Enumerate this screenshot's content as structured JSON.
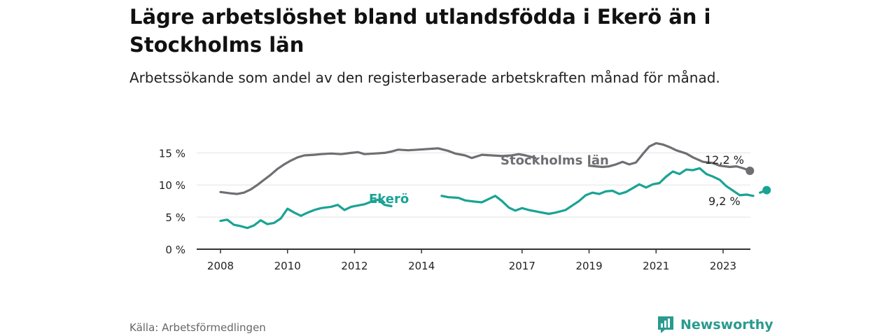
{
  "title": "Lägre arbetslöshet bland utlandsfödda i Ekerö än i Stockholms län",
  "subtitle": "Arbetssökande som andel av den registerbaserade arbetskraften månad för månad.",
  "source": "Källa: Arbetsförmedlingen",
  "brand": "Newsworthy",
  "colors": {
    "stockholm": "#6f6e73",
    "ekero": "#1aa394",
    "grid": "#e3e3e3",
    "axis": "#333333",
    "brand": "#2a9a8f"
  },
  "chart_data": {
    "type": "line",
    "title": "Lägre arbetslöshet bland utlandsfödda i Ekerö än i Stockholms län",
    "ylabel": "",
    "xlabel": "",
    "ylim": [
      0,
      17
    ],
    "xlim": [
      2007.7,
      2023.9
    ],
    "yticks": [
      0,
      5,
      10,
      15
    ],
    "ytick_labels": [
      "0 %",
      "5 %",
      "10 %",
      "15 %"
    ],
    "xticks": [
      2008,
      2010,
      2012,
      2014,
      2017,
      2019,
      2021,
      2023
    ],
    "xtick_labels": [
      "2008",
      "2010",
      "2012",
      "2014",
      "2017",
      "2019",
      "2021",
      "2023"
    ],
    "series": [
      {
        "name": "Stockholms län",
        "color": "#6f6e73",
        "end_label": "12,2 %",
        "segments": [
          [
            [
              2008.0,
              8.9
            ],
            [
              2008.3,
              8.7
            ],
            [
              2008.5,
              8.6
            ],
            [
              2008.7,
              8.8
            ],
            [
              2008.9,
              9.3
            ],
            [
              2009.1,
              10.0
            ],
            [
              2009.3,
              10.8
            ],
            [
              2009.5,
              11.6
            ],
            [
              2009.7,
              12.5
            ],
            [
              2009.9,
              13.2
            ],
            [
              2010.1,
              13.8
            ],
            [
              2010.3,
              14.3
            ],
            [
              2010.5,
              14.6
            ],
            [
              2010.8,
              14.7
            ],
            [
              2011.0,
              14.8
            ],
            [
              2011.3,
              14.9
            ],
            [
              2011.6,
              14.8
            ],
            [
              2011.9,
              15.0
            ],
            [
              2012.1,
              15.1
            ],
            [
              2012.3,
              14.8
            ],
            [
              2012.6,
              14.9
            ],
            [
              2012.9,
              15.0
            ],
            [
              2013.1,
              15.2
            ],
            [
              2013.3,
              15.5
            ],
            [
              2013.6,
              15.4
            ],
            [
              2013.9,
              15.5
            ],
            [
              2014.2,
              15.6
            ],
            [
              2014.5,
              15.7
            ],
            [
              2014.8,
              15.3
            ],
            [
              2015.0,
              14.9
            ],
            [
              2015.3,
              14.6
            ],
            [
              2015.5,
              14.2
            ],
            [
              2015.8,
              14.7
            ],
            [
              2016.1,
              14.6
            ],
            [
              2016.4,
              14.5
            ],
            [
              2016.7,
              14.6
            ],
            [
              2016.9,
              14.8
            ],
            [
              2017.1,
              14.6
            ],
            [
              2017.4,
              14.2
            ]
          ],
          [
            [
              2019.0,
              13.0
            ],
            [
              2019.2,
              12.9
            ],
            [
              2019.4,
              12.8
            ],
            [
              2019.6,
              12.9
            ],
            [
              2019.8,
              13.2
            ],
            [
              2020.0,
              13.6
            ],
            [
              2020.2,
              13.2
            ],
            [
              2020.4,
              13.5
            ],
            [
              2020.6,
              14.8
            ],
            [
              2020.8,
              16.0
            ],
            [
              2021.0,
              16.5
            ],
            [
              2021.2,
              16.3
            ],
            [
              2021.4,
              15.9
            ],
            [
              2021.6,
              15.4
            ],
            [
              2021.9,
              14.9
            ],
            [
              2022.1,
              14.3
            ],
            [
              2022.4,
              13.6
            ],
            [
              2022.7,
              13.4
            ],
            [
              2022.9,
              13.0
            ],
            [
              2023.2,
              12.8
            ],
            [
              2023.4,
              12.9
            ],
            [
              2023.6,
              12.6
            ],
            [
              2023.8,
              12.2
            ]
          ]
        ]
      },
      {
        "name": "Ekerö",
        "color": "#1aa394",
        "end_label": "9,2 %",
        "segments": [
          [
            [
              2008.0,
              4.4
            ],
            [
              2008.2,
              4.6
            ],
            [
              2008.4,
              3.8
            ],
            [
              2008.6,
              3.6
            ],
            [
              2008.8,
              3.3
            ],
            [
              2009.0,
              3.7
            ],
            [
              2009.2,
              4.5
            ],
            [
              2009.4,
              3.9
            ],
            [
              2009.6,
              4.1
            ],
            [
              2009.8,
              4.8
            ],
            [
              2010.0,
              6.3
            ],
            [
              2010.2,
              5.7
            ],
            [
              2010.4,
              5.2
            ],
            [
              2010.6,
              5.7
            ],
            [
              2010.8,
              6.1
            ],
            [
              2011.0,
              6.4
            ],
            [
              2011.3,
              6.6
            ],
            [
              2011.5,
              6.9
            ],
            [
              2011.7,
              6.1
            ],
            [
              2011.9,
              6.6
            ],
            [
              2012.1,
              6.8
            ],
            [
              2012.3,
              7.0
            ],
            [
              2012.5,
              7.4
            ],
            [
              2012.7,
              7.7
            ],
            [
              2012.9,
              6.9
            ],
            [
              2013.1,
              6.7
            ]
          ],
          [
            [
              2014.6,
              8.3
            ],
            [
              2014.8,
              8.1
            ],
            [
              2015.1,
              8.0
            ],
            [
              2015.3,
              7.6
            ],
            [
              2015.6,
              7.4
            ],
            [
              2015.8,
              7.3
            ],
            [
              2016.0,
              7.8
            ],
            [
              2016.2,
              8.3
            ],
            [
              2016.4,
              7.5
            ],
            [
              2016.6,
              6.5
            ],
            [
              2016.8,
              6.0
            ],
            [
              2017.0,
              6.4
            ],
            [
              2017.2,
              6.1
            ],
            [
              2017.5,
              5.8
            ],
            [
              2017.8,
              5.5
            ],
            [
              2018.0,
              5.7
            ],
            [
              2018.3,
              6.1
            ],
            [
              2018.5,
              6.8
            ],
            [
              2018.7,
              7.5
            ],
            [
              2018.9,
              8.4
            ],
            [
              2019.1,
              8.8
            ],
            [
              2019.3,
              8.6
            ],
            [
              2019.5,
              9.0
            ],
            [
              2019.7,
              9.1
            ],
            [
              2019.9,
              8.6
            ],
            [
              2020.1,
              8.9
            ],
            [
              2020.3,
              9.5
            ],
            [
              2020.5,
              10.1
            ],
            [
              2020.7,
              9.6
            ],
            [
              2020.9,
              10.1
            ],
            [
              2021.1,
              10.3
            ],
            [
              2021.3,
              11.3
            ],
            [
              2021.5,
              12.1
            ],
            [
              2021.7,
              11.7
            ],
            [
              2021.9,
              12.4
            ],
            [
              2022.1,
              12.3
            ],
            [
              2022.3,
              12.6
            ],
            [
              2022.5,
              11.7
            ],
            [
              2022.7,
              11.3
            ],
            [
              2022.9,
              10.8
            ],
            [
              2023.1,
              9.8
            ],
            [
              2023.3,
              9.1
            ],
            [
              2023.5,
              8.4
            ],
            [
              2023.7,
              8.5
            ],
            [
              2023.9,
              8.3
            ]
          ],
          [
            [
              2024.1,
              8.8
            ],
            [
              2024.3,
              9.2
            ]
          ]
        ]
      }
    ],
    "annotations": [
      {
        "series": "Stockholms län",
        "text": "Stockholms län"
      },
      {
        "series": "Ekerö",
        "text": "Ekerö"
      }
    ]
  }
}
